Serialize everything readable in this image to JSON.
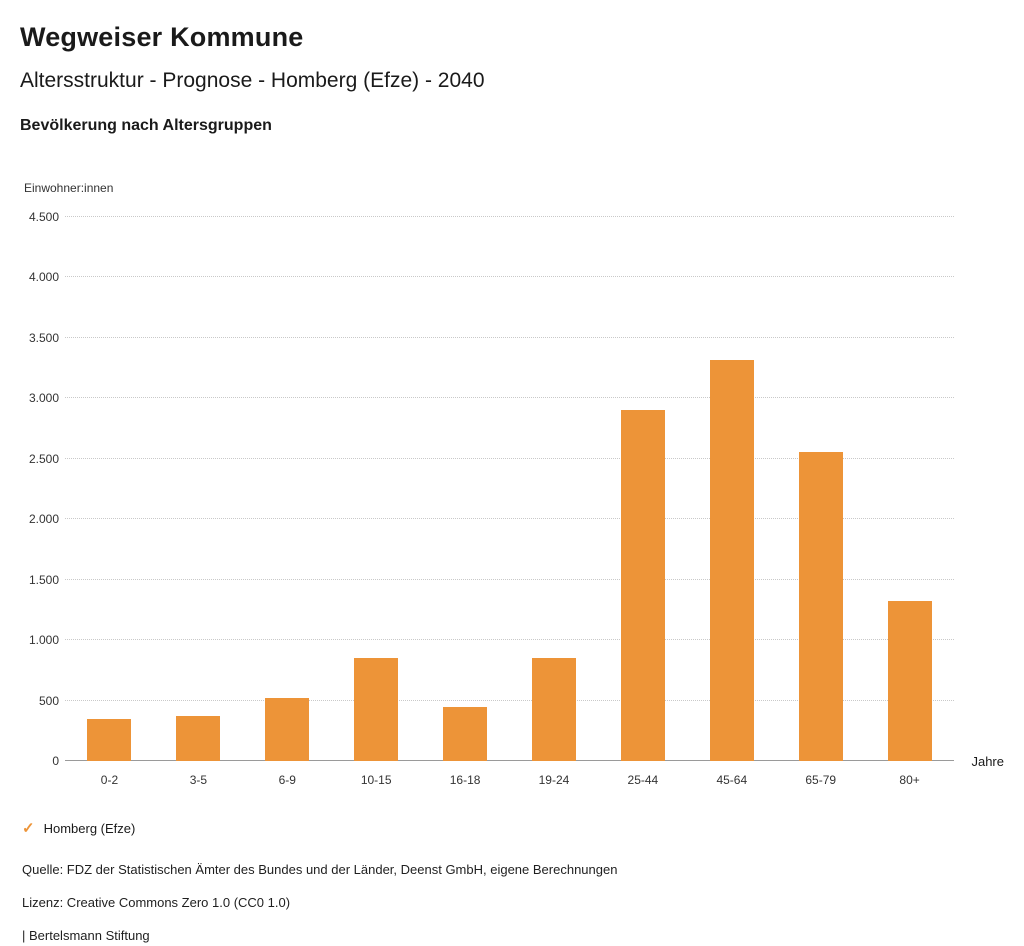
{
  "header": {
    "title": "Wegweiser Kommune",
    "subtitle": "Altersstruktur - Prognose - Homberg (Efze) - 2040",
    "chart_heading": "Bevölkerung nach Altersgruppen"
  },
  "chart_data": {
    "type": "bar",
    "title": "Bevölkerung nach Altersgruppen",
    "ylabel": "Einwohner:innen",
    "xlabel": "Jahre",
    "categories": [
      "0-2",
      "3-5",
      "6-9",
      "10-15",
      "16-18",
      "19-24",
      "25-44",
      "45-64",
      "65-79",
      "80+"
    ],
    "values": [
      350,
      370,
      525,
      855,
      450,
      855,
      2900,
      3320,
      2555,
      1320
    ],
    "ylim": [
      0,
      4500
    ],
    "ytick_step": 500,
    "ytick_labels": [
      "0",
      "500",
      "1.000",
      "1.500",
      "2.000",
      "2.500",
      "3.000",
      "3.500",
      "4.000",
      "4.500"
    ],
    "grid": true,
    "legend_position": "bottom-left",
    "bar_color": "#ED9438",
    "legend": [
      {
        "label": "Homberg (Efze)",
        "color": "#ED9438",
        "check_icon": "✓"
      }
    ]
  },
  "footer": {
    "source": "Quelle: FDZ der Statistischen Ämter des Bundes und der Länder, Deenst GmbH, eigene Berechnungen",
    "license": "Lizenz: Creative Commons Zero 1.0 (CC0 1.0)",
    "attribution": "| Bertelsmann Stiftung"
  }
}
